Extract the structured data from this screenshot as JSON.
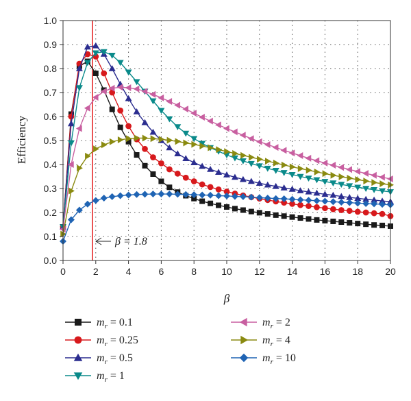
{
  "chart_data": {
    "type": "scatter",
    "xlabel": "β",
    "ylabel": "Efficiency",
    "xlim": [
      0,
      20
    ],
    "ylim": [
      0,
      1.0
    ],
    "xticks": [
      "0",
      "2",
      "4",
      "6",
      "8",
      "10",
      "12",
      "14",
      "16",
      "18",
      "20"
    ],
    "yticks": [
      "0.0",
      "0.1",
      "0.2",
      "0.3",
      "0.4",
      "0.5",
      "0.6",
      "0.7",
      "0.8",
      "0.9",
      "1.0"
    ],
    "grid": true,
    "legend_position": "bottom",
    "reference_line": {
      "x": 1.8,
      "color": "#e31a1c"
    },
    "annotation": {
      "text": "β = 1.8",
      "x": 1.8,
      "y": 0.08
    },
    "x": [
      0,
      0.5,
      1,
      1.5,
      2,
      2.5,
      3,
      3.5,
      4,
      4.5,
      5,
      5.5,
      6,
      6.5,
      7,
      7.5,
      8,
      8.5,
      9,
      9.5,
      10,
      10.5,
      11,
      11.5,
      12,
      12.5,
      13,
      13.5,
      14,
      14.5,
      15,
      15.5,
      16,
      16.5,
      17,
      17.5,
      18,
      18.5,
      19,
      19.5,
      20
    ],
    "series": [
      {
        "name": "m_r = 0.1",
        "legend_base": "m",
        "legend_sub": "r",
        "legend_rest": " = 0.1",
        "color": "#1a1a1a",
        "marker": "square",
        "values": [
          0.14,
          0.61,
          0.81,
          0.83,
          0.78,
          0.71,
          0.63,
          0.555,
          0.495,
          0.44,
          0.395,
          0.36,
          0.33,
          0.305,
          0.285,
          0.27,
          0.258,
          0.247,
          0.238,
          0.23,
          0.223,
          0.216,
          0.21,
          0.204,
          0.199,
          0.194,
          0.189,
          0.185,
          0.181,
          0.177,
          0.173,
          0.169,
          0.166,
          0.163,
          0.16,
          0.157,
          0.154,
          0.151,
          0.148,
          0.146,
          0.143
        ]
      },
      {
        "name": "m_r = 0.25",
        "legend_base": "m",
        "legend_sub": "r",
        "legend_rest": " = 0.25",
        "color": "#d7191c",
        "marker": "circle",
        "values": [
          0.14,
          0.6,
          0.82,
          0.86,
          0.85,
          0.78,
          0.7,
          0.625,
          0.56,
          0.505,
          0.465,
          0.43,
          0.405,
          0.38,
          0.362,
          0.345,
          0.33,
          0.317,
          0.306,
          0.296,
          0.287,
          0.279,
          0.271,
          0.264,
          0.258,
          0.252,
          0.246,
          0.241,
          0.236,
          0.231,
          0.227,
          0.222,
          0.218,
          0.214,
          0.21,
          0.207,
          0.203,
          0.2,
          0.197,
          0.194,
          0.185
        ]
      },
      {
        "name": "m_r = 0.5",
        "legend_base": "m",
        "legend_sub": "r",
        "legend_rest": " = 0.5",
        "color": "#2b2d8f",
        "marker": "triangle-up",
        "values": [
          0.14,
          0.57,
          0.8,
          0.89,
          0.895,
          0.86,
          0.8,
          0.735,
          0.675,
          0.62,
          0.575,
          0.535,
          0.5,
          0.47,
          0.445,
          0.425,
          0.408,
          0.393,
          0.38,
          0.368,
          0.357,
          0.347,
          0.338,
          0.33,
          0.322,
          0.315,
          0.309,
          0.303,
          0.297,
          0.291,
          0.286,
          0.281,
          0.276,
          0.272,
          0.267,
          0.263,
          0.259,
          0.255,
          0.252,
          0.248,
          0.245
        ]
      },
      {
        "name": "m_r = 1",
        "legend_base": "m",
        "legend_sub": "r",
        "legend_rest": " = 1",
        "color": "#0a8a8a",
        "marker": "triangle-down",
        "values": [
          0.14,
          0.49,
          0.72,
          0.825,
          0.865,
          0.87,
          0.855,
          0.825,
          0.785,
          0.745,
          0.705,
          0.665,
          0.625,
          0.59,
          0.557,
          0.53,
          0.508,
          0.488,
          0.47,
          0.455,
          0.44,
          0.427,
          0.415,
          0.404,
          0.394,
          0.384,
          0.375,
          0.366,
          0.358,
          0.35,
          0.343,
          0.336,
          0.329,
          0.323,
          0.317,
          0.311,
          0.305,
          0.3,
          0.295,
          0.29,
          0.286
        ]
      },
      {
        "name": "m_r = 2",
        "legend_base": "m",
        "legend_sub": "r",
        "legend_rest": " = 2",
        "color": "#c85fa0",
        "marker": "triangle-left",
        "values": [
          0.13,
          0.4,
          0.55,
          0.635,
          0.68,
          0.705,
          0.718,
          0.722,
          0.72,
          0.715,
          0.705,
          0.692,
          0.678,
          0.663,
          0.647,
          0.631,
          0.614,
          0.597,
          0.581,
          0.565,
          0.55,
          0.536,
          0.522,
          0.508,
          0.495,
          0.483,
          0.471,
          0.459,
          0.448,
          0.437,
          0.426,
          0.416,
          0.406,
          0.397,
          0.388,
          0.379,
          0.371,
          0.363,
          0.355,
          0.347,
          0.34
        ]
      },
      {
        "name": "m_r = 4",
        "legend_base": "m",
        "legend_sub": "r",
        "legend_rest": " = 4",
        "color": "#8a8a10",
        "marker": "triangle-right",
        "values": [
          0.11,
          0.29,
          0.385,
          0.435,
          0.465,
          0.482,
          0.495,
          0.503,
          0.508,
          0.51,
          0.51,
          0.508,
          0.505,
          0.501,
          0.496,
          0.49,
          0.484,
          0.477,
          0.47,
          0.462,
          0.454,
          0.446,
          0.438,
          0.43,
          0.422,
          0.414,
          0.406,
          0.398,
          0.39,
          0.383,
          0.376,
          0.369,
          0.362,
          0.355,
          0.349,
          0.343,
          0.337,
          0.331,
          0.325,
          0.32,
          0.315
        ]
      },
      {
        "name": "m_r = 10",
        "legend_base": "m",
        "legend_sub": "r",
        "legend_rest": " = 10",
        "color": "#1f64b4",
        "marker": "diamond",
        "values": [
          0.08,
          0.17,
          0.21,
          0.235,
          0.25,
          0.26,
          0.266,
          0.27,
          0.273,
          0.275,
          0.276,
          0.277,
          0.277,
          0.277,
          0.276,
          0.275,
          0.274,
          0.273,
          0.272,
          0.27,
          0.269,
          0.267,
          0.266,
          0.264,
          0.262,
          0.26,
          0.258,
          0.257,
          0.255,
          0.253,
          0.251,
          0.249,
          0.247,
          0.245,
          0.243,
          0.241,
          0.239,
          0.237,
          0.236,
          0.234,
          0.232
        ]
      }
    ]
  }
}
